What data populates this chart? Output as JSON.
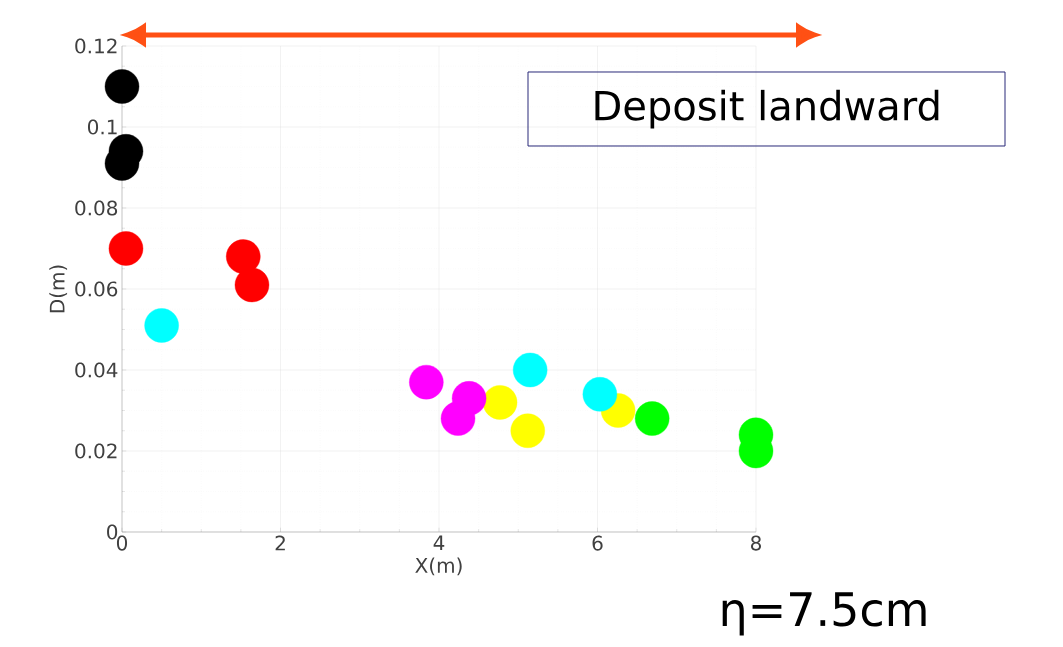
{
  "chart_data": {
    "type": "scatter",
    "xlabel": "X(m)",
    "ylabel": "D(m)",
    "xlim": [
      0,
      8
    ],
    "ylim": [
      0,
      0.12
    ],
    "xticks": [
      0,
      2,
      4,
      6,
      8
    ],
    "yticks": [
      0,
      0.02,
      0.04,
      0.06,
      0.08,
      0.1,
      0.12
    ],
    "grid": true,
    "marker": "circle",
    "series": [
      {
        "color": "#000000",
        "x": [
          0,
          0.05,
          0
        ],
        "values": [
          0.11,
          0.094,
          0.091
        ]
      },
      {
        "color": "#ff0000",
        "x": [
          0.05,
          1.53,
          1.64
        ],
        "values": [
          0.07,
          0.068,
          0.061
        ]
      },
      {
        "color": "#ffff00",
        "x": [
          4.77,
          5.12,
          6.26
        ],
        "values": [
          0.032,
          0.025,
          0.03
        ]
      },
      {
        "color": "#00ff00",
        "x": [
          6.69,
          8,
          8
        ],
        "values": [
          0.028,
          0.024,
          0.02
        ]
      },
      {
        "color": "#ff00ff",
        "x": [
          3.84,
          4.24,
          4.38
        ],
        "values": [
          0.037,
          0.028,
          0.033
        ]
      },
      {
        "color": "#00ffff",
        "x": [
          0.5,
          5.15,
          6.03
        ],
        "values": [
          0.051,
          0.04,
          0.034
        ]
      }
    ],
    "annotations": [
      "Deposit landward",
      "η=7.5cm"
    ]
  }
}
